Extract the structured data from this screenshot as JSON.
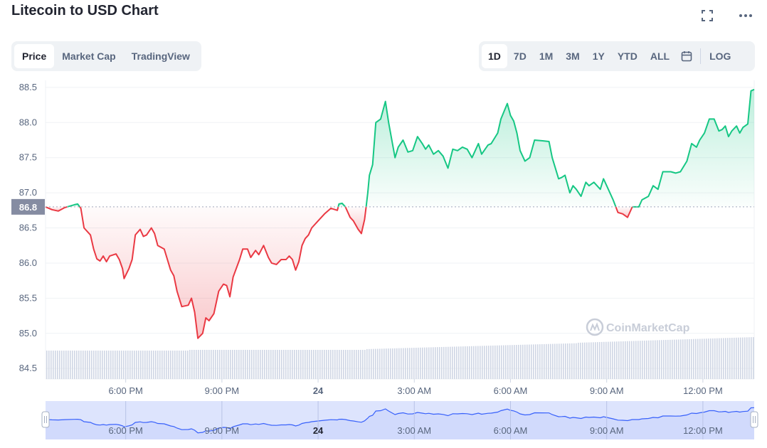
{
  "title": "Litecoin to USD Chart",
  "top_icons": [
    "fullscreen-icon",
    "more-icon"
  ],
  "tabs": [
    {
      "label": "Price",
      "active": true
    },
    {
      "label": "Market Cap",
      "active": false
    },
    {
      "label": "TradingView",
      "active": false
    }
  ],
  "ranges": [
    {
      "label": "1D",
      "active": true
    },
    {
      "label": "7D",
      "active": false
    },
    {
      "label": "1M",
      "active": false
    },
    {
      "label": "3M",
      "active": false
    },
    {
      "label": "1Y",
      "active": false
    },
    {
      "label": "YTD",
      "active": false
    },
    {
      "label": "ALL",
      "active": false
    }
  ],
  "calendar_icon": "calendar-icon",
  "log_label": "LOG",
  "watermark": "CoinMarketCap",
  "colors": {
    "up": "#16c784",
    "down": "#ea3943",
    "volume": "#cfd6e4",
    "navigator_line": "#3861fb",
    "navigator_fill": "#dde4fd",
    "price_label_bg": "#858ca2"
  },
  "chart_data": {
    "type": "line",
    "title": "",
    "xlabel": "",
    "ylabel": "",
    "ylim": [
      84.35,
      88.6
    ],
    "yticks": [
      "88.5",
      "88.0",
      "87.5",
      "87.0",
      "86.5",
      "86.0",
      "85.5",
      "85.0",
      "84.5"
    ],
    "reference_price": 86.8,
    "reference_label": "86.8",
    "xticks": [
      {
        "label": "6:00 PM",
        "hours": 2.5
      },
      {
        "label": "9:00 PM",
        "hours": 5.5
      },
      {
        "label": "24",
        "hours": 8.5
      },
      {
        "label": "3:00 AM",
        "hours": 11.5
      },
      {
        "label": "6:00 AM",
        "hours": 14.5
      },
      {
        "label": "9:00 AM",
        "hours": 17.5
      },
      {
        "label": "12:00 PM",
        "hours": 20.5
      }
    ],
    "series": [
      {
        "values": [
          [
            0.0,
            86.8
          ],
          [
            0.2,
            86.76
          ],
          [
            0.4,
            86.74
          ],
          [
            0.6,
            86.79
          ],
          [
            0.9,
            86.83
          ],
          [
            1.0,
            86.84
          ],
          [
            1.1,
            86.78
          ],
          [
            1.2,
            86.5
          ],
          [
            1.4,
            86.4
          ],
          [
            1.5,
            86.2
          ],
          [
            1.6,
            86.06
          ],
          [
            1.7,
            86.03
          ],
          [
            1.8,
            86.1
          ],
          [
            1.9,
            86.02
          ],
          [
            2.0,
            86.1
          ],
          [
            2.2,
            86.13
          ],
          [
            2.3,
            86.05
          ],
          [
            2.4,
            85.92
          ],
          [
            2.45,
            85.78
          ],
          [
            2.6,
            85.92
          ],
          [
            2.7,
            86.05
          ],
          [
            2.8,
            86.4
          ],
          [
            2.95,
            86.48
          ],
          [
            3.05,
            86.38
          ],
          [
            3.15,
            86.4
          ],
          [
            3.3,
            86.5
          ],
          [
            3.4,
            86.42
          ],
          [
            3.5,
            86.25
          ],
          [
            3.7,
            86.2
          ],
          [
            3.8,
            86.05
          ],
          [
            3.9,
            85.9
          ],
          [
            4.0,
            85.82
          ],
          [
            4.1,
            85.6
          ],
          [
            4.25,
            85.38
          ],
          [
            4.45,
            85.4
          ],
          [
            4.55,
            85.5
          ],
          [
            4.65,
            85.3
          ],
          [
            4.75,
            84.93
          ],
          [
            4.9,
            85.0
          ],
          [
            5.0,
            85.22
          ],
          [
            5.1,
            85.18
          ],
          [
            5.25,
            85.28
          ],
          [
            5.4,
            85.6
          ],
          [
            5.55,
            85.7
          ],
          [
            5.65,
            85.68
          ],
          [
            5.75,
            85.52
          ],
          [
            5.85,
            85.8
          ],
          [
            6.05,
            86.05
          ],
          [
            6.15,
            86.2
          ],
          [
            6.3,
            86.2
          ],
          [
            6.4,
            86.08
          ],
          [
            6.55,
            86.18
          ],
          [
            6.65,
            86.12
          ],
          [
            6.8,
            86.25
          ],
          [
            6.95,
            86.08
          ],
          [
            7.05,
            86.0
          ],
          [
            7.2,
            85.98
          ],
          [
            7.35,
            86.05
          ],
          [
            7.5,
            86.05
          ],
          [
            7.6,
            86.1
          ],
          [
            7.7,
            86.05
          ],
          [
            7.8,
            85.9
          ],
          [
            7.9,
            86.02
          ],
          [
            8.0,
            86.25
          ],
          [
            8.1,
            86.35
          ],
          [
            8.2,
            86.4
          ],
          [
            8.3,
            86.5
          ],
          [
            8.5,
            86.6
          ],
          [
            8.7,
            86.7
          ],
          [
            8.9,
            86.78
          ],
          [
            9.1,
            86.75
          ],
          [
            9.15,
            86.84
          ],
          [
            9.25,
            86.85
          ],
          [
            9.35,
            86.8
          ],
          [
            9.5,
            86.65
          ],
          [
            9.6,
            86.6
          ],
          [
            9.75,
            86.48
          ],
          [
            9.85,
            86.42
          ],
          [
            9.95,
            86.62
          ],
          [
            10.05,
            87.0
          ],
          [
            10.1,
            87.25
          ],
          [
            10.2,
            87.4
          ],
          [
            10.3,
            88.0
          ],
          [
            10.45,
            88.05
          ],
          [
            10.6,
            88.3
          ],
          [
            10.7,
            88.0
          ],
          [
            10.8,
            87.75
          ],
          [
            10.9,
            87.5
          ],
          [
            11.0,
            87.65
          ],
          [
            11.15,
            87.75
          ],
          [
            11.3,
            87.58
          ],
          [
            11.45,
            87.6
          ],
          [
            11.6,
            87.8
          ],
          [
            11.75,
            87.7
          ],
          [
            11.85,
            87.62
          ],
          [
            11.95,
            87.68
          ],
          [
            12.1,
            87.55
          ],
          [
            12.25,
            87.6
          ],
          [
            12.4,
            87.52
          ],
          [
            12.55,
            87.35
          ],
          [
            12.7,
            87.62
          ],
          [
            12.85,
            87.6
          ],
          [
            13.0,
            87.65
          ],
          [
            13.15,
            87.62
          ],
          [
            13.3,
            87.5
          ],
          [
            13.5,
            87.7
          ],
          [
            13.6,
            87.55
          ],
          [
            13.8,
            87.68
          ],
          [
            13.9,
            87.7
          ],
          [
            14.1,
            87.85
          ],
          [
            14.2,
            88.05
          ],
          [
            14.4,
            88.27
          ],
          [
            14.5,
            88.1
          ],
          [
            14.6,
            88.02
          ],
          [
            14.7,
            87.85
          ],
          [
            14.8,
            87.6
          ],
          [
            14.95,
            87.45
          ],
          [
            15.1,
            87.5
          ],
          [
            15.25,
            87.75
          ],
          [
            15.5,
            87.74
          ],
          [
            15.7,
            87.73
          ],
          [
            15.8,
            87.5
          ],
          [
            16.0,
            87.2
          ],
          [
            16.1,
            87.22
          ],
          [
            16.2,
            87.25
          ],
          [
            16.35,
            87.0
          ],
          [
            16.45,
            87.1
          ],
          [
            16.55,
            87.05
          ],
          [
            16.7,
            86.95
          ],
          [
            16.85,
            87.15
          ],
          [
            16.95,
            87.1
          ],
          [
            17.1,
            87.15
          ],
          [
            17.3,
            87.05
          ],
          [
            17.4,
            87.2
          ],
          [
            17.5,
            87.1
          ],
          [
            17.7,
            86.9
          ],
          [
            17.85,
            86.72
          ],
          [
            18.0,
            86.7
          ],
          [
            18.15,
            86.65
          ],
          [
            18.3,
            86.8
          ],
          [
            18.5,
            86.8
          ],
          [
            18.6,
            86.9
          ],
          [
            18.8,
            86.95
          ],
          [
            18.95,
            87.1
          ],
          [
            19.1,
            87.05
          ],
          [
            19.25,
            87.3
          ],
          [
            19.4,
            87.3
          ],
          [
            19.5,
            87.3
          ],
          [
            19.65,
            87.28
          ],
          [
            19.8,
            87.3
          ],
          [
            20.0,
            87.45
          ],
          [
            20.15,
            87.7
          ],
          [
            20.3,
            87.65
          ],
          [
            20.4,
            87.75
          ],
          [
            20.55,
            87.85
          ],
          [
            20.7,
            88.05
          ],
          [
            20.85,
            88.05
          ],
          [
            21.0,
            87.88
          ],
          [
            21.1,
            87.9
          ],
          [
            21.2,
            87.95
          ],
          [
            21.3,
            87.8
          ],
          [
            21.4,
            87.88
          ],
          [
            21.55,
            87.95
          ],
          [
            21.65,
            87.85
          ],
          [
            21.75,
            87.93
          ],
          [
            21.9,
            87.98
          ],
          [
            22.0,
            88.45
          ],
          [
            22.1,
            88.47
          ]
        ]
      }
    ]
  }
}
